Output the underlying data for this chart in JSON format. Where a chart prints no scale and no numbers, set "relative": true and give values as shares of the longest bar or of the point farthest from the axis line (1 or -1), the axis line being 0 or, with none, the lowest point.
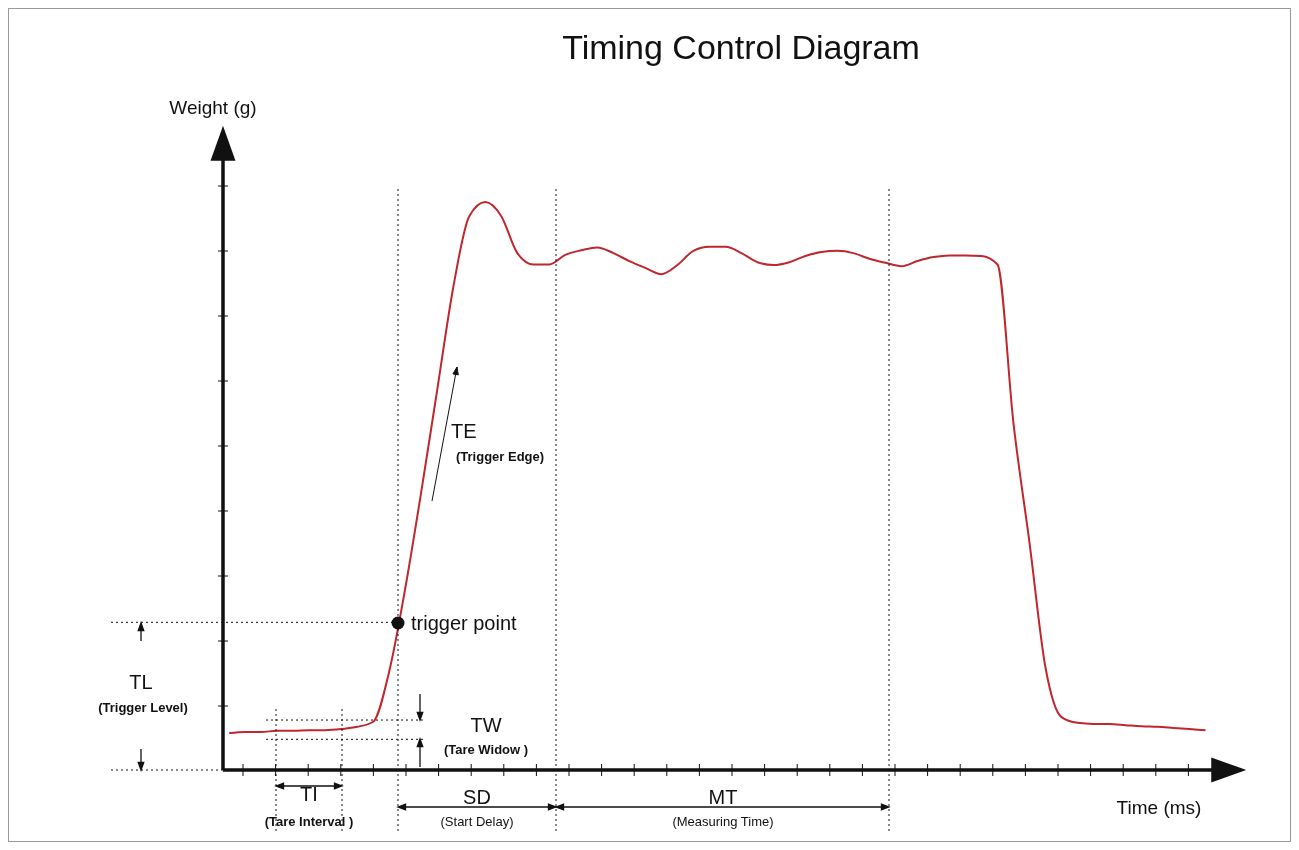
{
  "chart_data": {
    "type": "line",
    "title": "Timing Control Diagram",
    "xlabel": "Time (ms)",
    "ylabel": "Weight (g)",
    "relative": true,
    "marker": "none",
    "line_style": "solid",
    "categories": [
      null,
      null,
      null,
      null,
      null,
      null,
      null,
      null,
      null,
      null,
      null,
      null,
      null,
      null,
      null,
      null,
      null,
      null,
      null,
      null,
      null,
      null,
      null,
      null,
      null,
      null,
      null,
      null,
      null,
      null,
      null,
      null,
      null,
      null,
      null,
      null,
      null,
      null,
      null,
      null,
      null,
      null,
      null,
      null,
      null,
      null,
      null,
      null,
      null,
      null,
      null,
      null,
      null,
      null,
      null,
      null,
      null,
      null,
      null,
      null,
      null,
      null
    ],
    "series": [
      {
        "color": "#c0272d",
        "values": [
          0.065,
          0.067,
          0.067,
          0.069,
          0.069,
          0.07,
          0.07,
          0.072,
          0.076,
          0.085,
          0.174,
          0.32,
          0.49,
          0.67,
          0.85,
          0.975,
          1,
          0.975,
          0.91,
          0.89,
          0.89,
          0.907,
          0.915,
          0.92,
          0.91,
          0.896,
          0.884,
          0.873,
          0.889,
          0.914,
          0.921,
          0.921,
          0.91,
          0.894,
          0.889,
          0.894,
          0.905,
          0.912,
          0.914,
          0.91,
          0.9,
          0.893,
          0.887,
          0.896,
          0.903,
          0.906,
          0.906,
          0.905,
          0.89,
          0.61,
          0.4,
          0.18,
          0.093,
          0.083,
          0.081,
          0.081,
          0.079,
          0.077,
          0.076,
          0.074,
          0.072,
          0.07
        ]
      }
    ],
    "ref_lines": [
      {
        "axis": "y",
        "value": 0.26,
        "line_style": "dotted"
      },
      {
        "axis": "y",
        "value": 0.088,
        "line_style": "dotted"
      },
      {
        "axis": "y",
        "value": 0.054,
        "line_style": "dotted"
      }
    ],
    "annotations": [
      "trigger point",
      "TE",
      "(Trigger Edge)",
      "TL",
      "(Trigger Level)",
      "TW",
      "(Tare Widow )",
      "TI",
      "(Tare Interval )",
      "SD",
      "(Start Delay)",
      "MT",
      "(Measuring Time)"
    ]
  }
}
